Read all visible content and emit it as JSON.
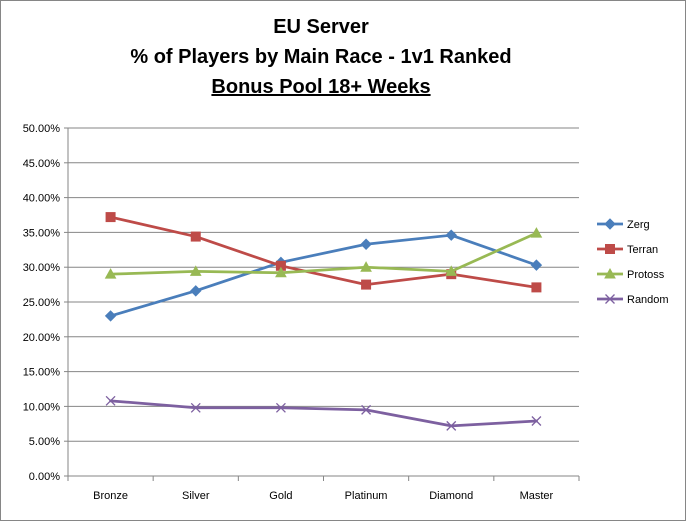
{
  "chart_data": {
    "type": "line",
    "title_lines": [
      "EU Server",
      "% of Players by Main Race - 1v1 Ranked",
      "Bonus Pool 18+ Weeks"
    ],
    "categories": [
      "Bronze",
      "Silver",
      "Gold",
      "Platinum",
      "Diamond",
      "Master"
    ],
    "ylim": [
      0,
      50
    ],
    "yticks": [
      "0.00%",
      "5.00%",
      "10.00%",
      "15.00%",
      "20.00%",
      "25.00%",
      "30.00%",
      "35.00%",
      "40.00%",
      "45.00%",
      "50.00%"
    ],
    "grid": true,
    "legend_position": "right",
    "series": [
      {
        "name": "Zerg",
        "color": "#4A7EBB",
        "marker": "diamond",
        "values": [
          23.0,
          26.6,
          30.7,
          33.3,
          34.6,
          30.3
        ]
      },
      {
        "name": "Terran",
        "color": "#BE4B48",
        "marker": "square",
        "values": [
          37.2,
          34.4,
          30.2,
          27.5,
          29.0,
          27.1
        ]
      },
      {
        "name": "Protoss",
        "color": "#98B954",
        "marker": "triangle",
        "values": [
          29.0,
          29.4,
          29.2,
          30.0,
          29.4,
          34.9
        ]
      },
      {
        "name": "Random",
        "color": "#7D60A0",
        "marker": "x",
        "values": [
          10.8,
          9.8,
          9.8,
          9.5,
          7.2,
          7.9
        ]
      }
    ]
  }
}
